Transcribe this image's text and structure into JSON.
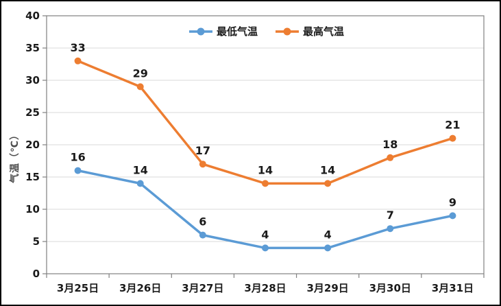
{
  "chart_data": {
    "type": "line",
    "title": "",
    "categories": [
      "3月25日",
      "3月26日",
      "3月27日",
      "3月28日",
      "3月29日",
      "3月30日",
      "3月31日"
    ],
    "series": [
      {
        "key": "min-temp",
        "name": "最低气温",
        "color": "#5B9BD5",
        "values": [
          16,
          14,
          6,
          4,
          4,
          7,
          9
        ]
      },
      {
        "key": "max-temp",
        "name": "最高气温",
        "color": "#ED7D31",
        "values": [
          33,
          29,
          17,
          14,
          14,
          18,
          21
        ]
      }
    ],
    "xlabel": "",
    "ylabel": "气温（℃）",
    "ylim": [
      0,
      40
    ],
    "y_tick_step": 5,
    "y_tick_labels": [
      "0",
      "5",
      "10",
      "15",
      "20",
      "25",
      "30",
      "35",
      "40"
    ],
    "grid": true,
    "legend_position": "top-center",
    "data_labels": true
  },
  "style": {
    "grid_color": "#D9D9D9",
    "axis_color": "#808080",
    "text_color": "#1a1a1a",
    "axis_title_color": "#4d4d4d",
    "border_color": "#000000",
    "background": "#FFFFFF",
    "min_series_color": "#5B9BD5",
    "max_series_color": "#ED7D31"
  }
}
